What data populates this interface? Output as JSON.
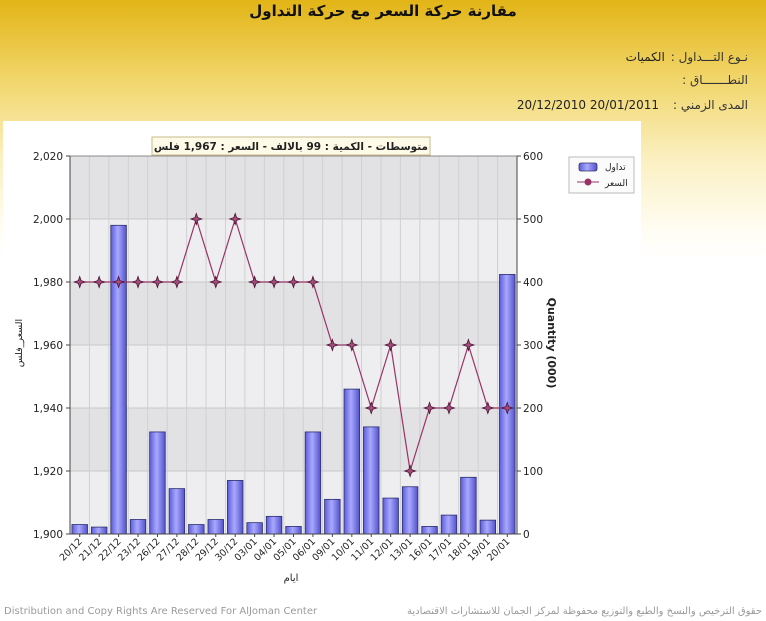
{
  "page": {
    "title": "مقارنة حركة السعر مع حركة التداول",
    "trade_type_label": "نـوع التـــداول :",
    "trade_type_value": "الكميات",
    "scope_label": "النطـــــــاق :",
    "scope_value": "",
    "period_label": "المدى الزمني :",
    "period_value": "20/01/2011 20/12/2010",
    "footer_left": "Distribution and Copy Rights Are Reserved For AlJoman Center",
    "footer_right": "حقوق الترخيص والنسخ والطبع والتوزيع محفوظة لمركز الجمان للاستشارات الاقتصادية"
  },
  "chart_data": {
    "type": "bar",
    "banner": "متوسطات - الكمية : 99 بالالف  -  السعر : 1,967 فلس",
    "categories": [
      "20/12",
      "21/12",
      "22/12",
      "23/12",
      "26/12",
      "27/12",
      "28/12",
      "29/12",
      "30/12",
      "03/01",
      "04/01",
      "05/01",
      "06/01",
      "09/01",
      "10/01",
      "11/01",
      "12/01",
      "13/01",
      "16/01",
      "17/01",
      "18/01",
      "19/01",
      "20/01"
    ],
    "series": [
      {
        "name": "تداول",
        "kind": "bar",
        "axis": "right",
        "color": "#7777ee",
        "values": [
          15,
          11,
          490,
          23,
          162,
          72,
          15,
          23,
          85,
          18,
          28,
          12,
          162,
          55,
          230,
          170,
          57,
          75,
          12,
          30,
          90,
          22,
          412
        ]
      },
      {
        "name": "السعر",
        "kind": "line",
        "axis": "left",
        "color": "#993366",
        "values": [
          1980,
          1980,
          1980,
          1980,
          1980,
          1980,
          2000,
          1980,
          2000,
          1980,
          1980,
          1980,
          1980,
          1960,
          1960,
          1940,
          1960,
          1920,
          1940,
          1940,
          1960,
          1940,
          1940
        ]
      }
    ],
    "ylabel_left": "السعر_فلس",
    "ylabel_right": "Quantity (000)",
    "xlabel": "ايام",
    "ylim_left": [
      1900,
      2020
    ],
    "yticks_left": [
      1900,
      1920,
      1940,
      1960,
      1980,
      2000,
      2020
    ],
    "yticks_left_labels": [
      "1,900",
      "1,920",
      "1,940",
      "1,960",
      "1,980",
      "2,000",
      "2,020"
    ],
    "ylim_right": [
      0,
      600
    ],
    "yticks_right": [
      0,
      100,
      200,
      300,
      400,
      500,
      600
    ],
    "legend_position": "top-right",
    "grid": true
  }
}
